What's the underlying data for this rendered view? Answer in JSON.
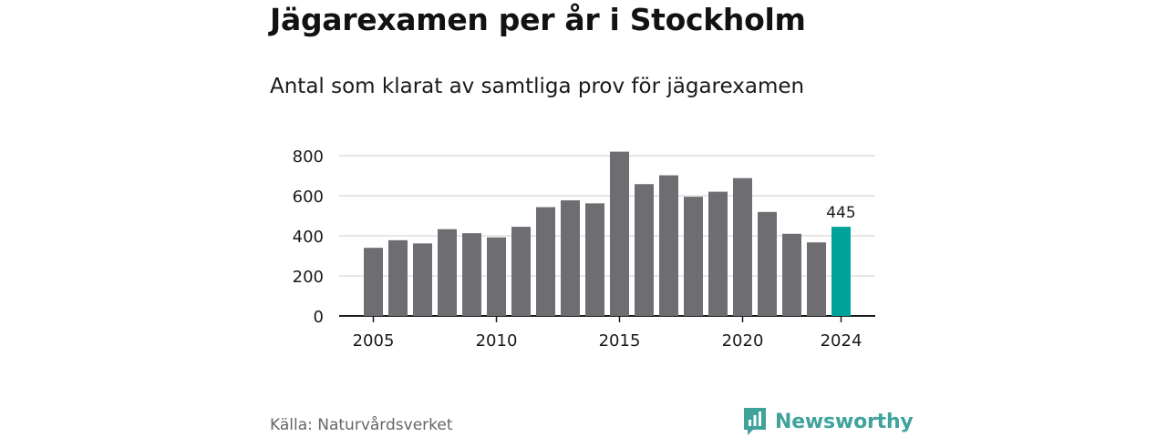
{
  "title": "Jägarexamen per år i Stockholm",
  "subtitle": "Antal som klarat av samtliga prov för jägarexamen",
  "source": "Källa: Naturvårdsverket",
  "brand": "Newsworthy",
  "colors": {
    "bar": "#6e6e72",
    "highlight": "#00a39a",
    "grid": "#dddddd",
    "axis": "#1a1a1a",
    "brand": "#3fa39c"
  },
  "chart_data": {
    "type": "bar",
    "x": [
      2005,
      2006,
      2007,
      2008,
      2009,
      2010,
      2011,
      2012,
      2013,
      2014,
      2015,
      2016,
      2017,
      2018,
      2019,
      2020,
      2021,
      2022,
      2023,
      2024
    ],
    "values": [
      340,
      378,
      362,
      433,
      413,
      392,
      445,
      543,
      577,
      562,
      820,
      658,
      702,
      595,
      620,
      688,
      519,
      410,
      367,
      445
    ],
    "highlight_index": 19,
    "highlight_label": "445",
    "ylim": [
      0,
      800
    ],
    "yticks": [
      0,
      200,
      400,
      600,
      800
    ],
    "xticks": [
      2005,
      2010,
      2015,
      2020,
      2024
    ],
    "grid": true
  }
}
